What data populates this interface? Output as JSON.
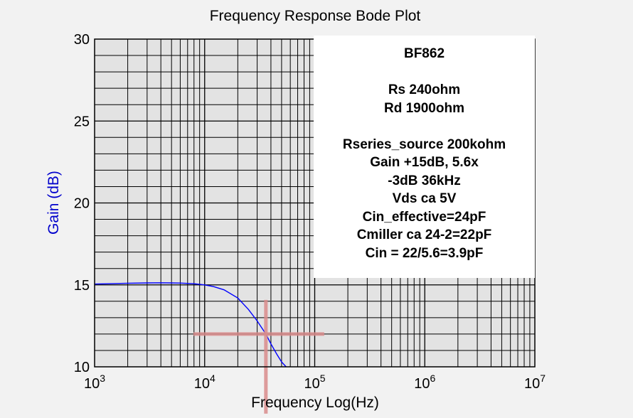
{
  "chart_data": {
    "type": "line",
    "title": "Frequency Response Bode Plot",
    "xlabel": "Frequency Log(Hz)",
    "ylabel": "Gain (dB)",
    "x_scale": "log",
    "xlim": [
      1000,
      10000000
    ],
    "ylim": [
      10,
      30
    ],
    "x_ticks": [
      {
        "base": "10",
        "exp": "3"
      },
      {
        "base": "10",
        "exp": "4"
      },
      {
        "base": "10",
        "exp": "5"
      },
      {
        "base": "10",
        "exp": "6"
      },
      {
        "base": "10",
        "exp": "7"
      }
    ],
    "y_ticks": [
      "10",
      "15",
      "20",
      "25",
      "30"
    ],
    "grid": true,
    "series": [
      {
        "color": "#0000ff",
        "x": [
          1000,
          2000,
          3000,
          4000,
          5000,
          6000,
          7000,
          8000,
          10000,
          12000,
          15000,
          20000,
          25000,
          30000,
          36000,
          40000,
          45000,
          50000,
          55000
        ],
        "y": [
          15.05,
          15.1,
          15.12,
          15.13,
          15.12,
          15.11,
          15.09,
          15.07,
          15.0,
          14.9,
          14.7,
          14.2,
          13.5,
          12.8,
          12.0,
          11.4,
          10.8,
          10.3,
          10.0
        ]
      }
    ],
    "marker": {
      "x": 36000,
      "y": 12,
      "color": "#d98c8c"
    },
    "annotation": {
      "lines": [
        "BF862",
        "",
        "Rs 240ohm",
        "Rd 1900ohm",
        "",
        "Rseries_source 200kohm",
        "Gain +15dB, 5.6x",
        "-3dB 36kHz",
        "Vds ca 5V",
        "Cin_effective=24pF",
        "Cmiller ca 24-2=22pF",
        "Cin = 22/5.6=3.9pF"
      ]
    }
  }
}
